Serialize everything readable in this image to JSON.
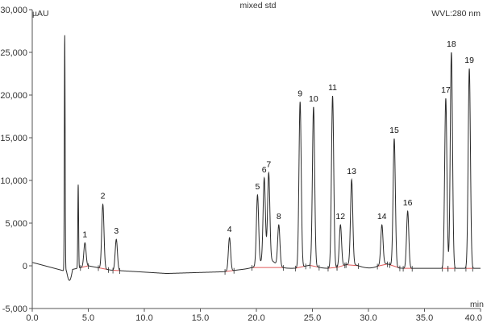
{
  "chart_data": {
    "type": "line",
    "title": "mixed std",
    "wavelength_label": "WVL:280 nm",
    "ylabel": "µAU",
    "xlabel": "min",
    "xlim": [
      0,
      40
    ],
    "ylim": [
      -5000,
      30000
    ],
    "x_ticks": [
      0,
      5,
      10,
      15,
      20,
      25,
      30,
      35,
      40
    ],
    "x_tick_labels": [
      "0.0",
      "5.0",
      "10.0",
      "15.0",
      "20.0",
      "25.0",
      "30.0",
      "35.0",
      "40.0"
    ],
    "y_ticks": [
      -5000,
      0,
      5000,
      10000,
      15000,
      20000,
      25000,
      30000
    ],
    "y_tick_labels": [
      "-5,000",
      "0",
      "5,000",
      "10,000",
      "15,000",
      "20,000",
      "25,000",
      "30,000"
    ],
    "grid": false,
    "colors": {
      "trace": "#2b2b2b",
      "baseline": "#e05a5a",
      "axis": "#555555"
    },
    "solvent_peaks": [
      {
        "rt": 2.9,
        "height": 27000
      },
      {
        "rt": 4.1,
        "height": 9500
      }
    ],
    "peaks": [
      {
        "label": "1",
        "rt": 4.7,
        "height": 2700
      },
      {
        "label": "2",
        "rt": 6.3,
        "height": 7200
      },
      {
        "label": "3",
        "rt": 7.5,
        "height": 3100
      },
      {
        "label": "4",
        "rt": 17.6,
        "height": 3300
      },
      {
        "label": "5",
        "rt": 20.1,
        "height": 8300
      },
      {
        "label": "6",
        "rt": 20.7,
        "height": 10300
      },
      {
        "label": "7",
        "rt": 21.1,
        "height": 10900
      },
      {
        "label": "8",
        "rt": 22.0,
        "height": 4800
      },
      {
        "label": "9",
        "rt": 23.9,
        "height": 19200
      },
      {
        "label": "10",
        "rt": 25.1,
        "height": 18600
      },
      {
        "label": "11",
        "rt": 26.8,
        "height": 19900
      },
      {
        "label": "12",
        "rt": 27.5,
        "height": 4800
      },
      {
        "label": "13",
        "rt": 28.5,
        "height": 10100
      },
      {
        "label": "14",
        "rt": 31.2,
        "height": 4800
      },
      {
        "label": "15",
        "rt": 32.3,
        "height": 14900
      },
      {
        "label": "16",
        "rt": 33.5,
        "height": 6400
      },
      {
        "label": "17",
        "rt": 36.9,
        "height": 19600
      },
      {
        "label": "18",
        "rt": 37.4,
        "height": 25000
      },
      {
        "label": "19",
        "rt": 39.0,
        "height": 23100
      }
    ]
  }
}
